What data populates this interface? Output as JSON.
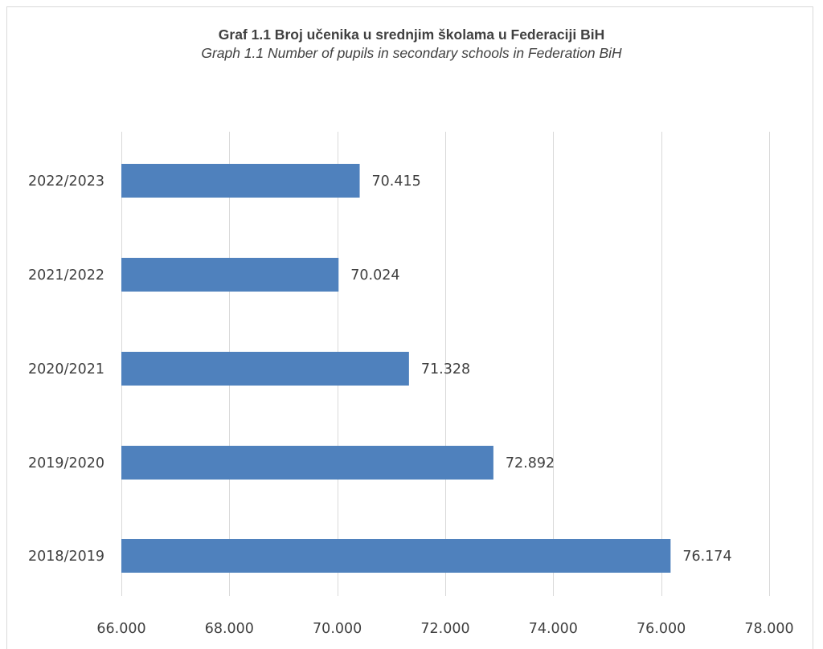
{
  "chart_data": {
    "type": "bar",
    "orientation": "horizontal",
    "title": "Graf 1.1 Broj učenika u srednjim školama u Federaciji BiH",
    "subtitle": "Graph 1.1 Number of pupils in secondary schools in Federation BiH",
    "categories": [
      "2022/2023",
      "2021/2022",
      "2020/2021",
      "2019/2020",
      "2018/2019"
    ],
    "values": [
      70415,
      70024,
      71328,
      72892,
      76174
    ],
    "data_labels": [
      "70.415",
      "70.024",
      "71.328",
      "72.892",
      "76.174"
    ],
    "xlim": [
      66000,
      78000
    ],
    "xticks": [
      66000,
      68000,
      70000,
      72000,
      74000,
      76000,
      78000
    ],
    "xtick_labels": [
      "66.000",
      "68.000",
      "70.000",
      "72.000",
      "74.000",
      "76.000",
      "78.000"
    ],
    "grid": true,
    "bar_color": "#4f81bd",
    "legend": "none"
  }
}
